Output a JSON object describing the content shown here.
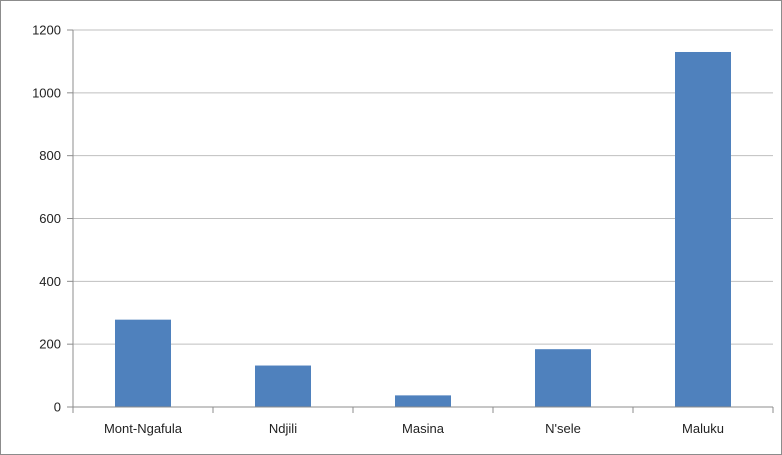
{
  "chart_data": {
    "type": "bar",
    "title": "",
    "xlabel": "",
    "ylabel": "",
    "categories": [
      "Mont-Ngafula",
      "Ndjili",
      "Masina",
      "N'sele",
      "Maluku"
    ],
    "values": [
      278,
      132,
      37,
      184,
      1130
    ],
    "ylim": [
      0,
      1200
    ],
    "yticks": [
      0,
      200,
      400,
      600,
      800,
      1000,
      1200
    ],
    "grid": true,
    "legend": "none",
    "bar_color": "#4f81bd",
    "grid_color": "#bfbfbf",
    "axis_color": "#8c8c8c"
  }
}
